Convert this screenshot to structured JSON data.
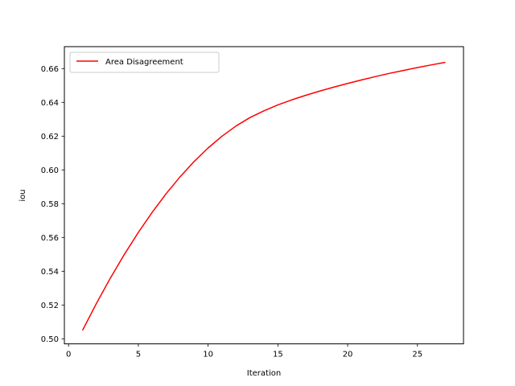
{
  "chart_data": {
    "type": "line",
    "title": "",
    "xlabel": "Iteration",
    "ylabel": "iou",
    "xlim": [
      -0.3,
      28.3
    ],
    "ylim": [
      0.497,
      0.673
    ],
    "xticks": [
      0,
      5,
      10,
      15,
      20,
      25
    ],
    "yticks": [
      0.5,
      0.52,
      0.54,
      0.56,
      0.58,
      0.6,
      0.62,
      0.64,
      0.66
    ],
    "ytick_labels": [
      "0.50",
      "0.52",
      "0.54",
      "0.56",
      "0.58",
      "0.60",
      "0.62",
      "0.64",
      "0.66"
    ],
    "xtick_labels": [
      "0",
      "5",
      "10",
      "15",
      "20",
      "25"
    ],
    "grid": false,
    "legend_position": "upper-left",
    "series": [
      {
        "name": "Area Disagreement",
        "color": "#ff0000",
        "x": [
          1,
          2,
          3,
          4,
          5,
          6,
          7,
          8,
          9,
          10,
          11,
          12,
          13,
          14,
          15,
          16,
          17,
          18,
          19,
          20,
          21,
          22,
          23,
          24,
          25,
          26,
          27
        ],
        "values": [
          0.505,
          0.521,
          0.536,
          0.55,
          0.563,
          0.575,
          0.586,
          0.596,
          0.605,
          0.613,
          0.62,
          0.626,
          0.631,
          0.635,
          0.6385,
          0.6415,
          0.6442,
          0.6467,
          0.649,
          0.6512,
          0.6533,
          0.6553,
          0.6572,
          0.6589,
          0.6606,
          0.6622,
          0.6637
        ]
      }
    ]
  }
}
